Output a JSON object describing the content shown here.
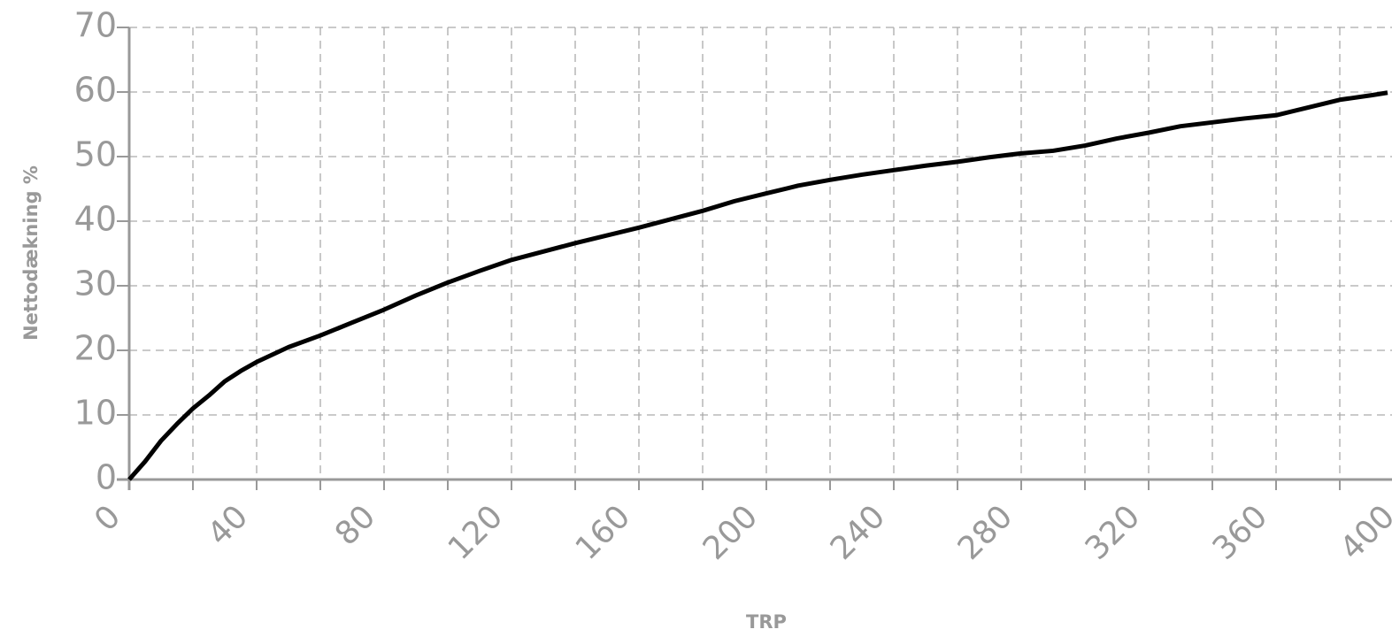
{
  "chart_data": {
    "type": "line",
    "x_label": "TRP",
    "y_label": "Nettodækning %",
    "x": [
      0,
      5,
      10,
      15,
      20,
      25,
      30,
      35,
      40,
      50,
      60,
      70,
      80,
      90,
      100,
      110,
      120,
      130,
      140,
      150,
      160,
      170,
      180,
      190,
      200,
      210,
      220,
      230,
      240,
      250,
      260,
      270,
      280,
      290,
      300,
      310,
      320,
      330,
      340,
      350,
      360,
      370,
      380,
      390,
      395
    ],
    "values": [
      0,
      2.8,
      6,
      8.6,
      11,
      13,
      15.2,
      16.8,
      18.2,
      20.5,
      22.3,
      24.3,
      26.3,
      28.5,
      30.5,
      32.3,
      34,
      35.3,
      36.6,
      37.8,
      39,
      40.3,
      41.6,
      43.1,
      44.3,
      45.5,
      46.4,
      47.2,
      47.9,
      48.6,
      49.2,
      49.9,
      50.5,
      50.9,
      51.7,
      52.8,
      53.7,
      54.7,
      55.3,
      55.9,
      56.4,
      57.6,
      58.8,
      59.5,
      59.9
    ],
    "color": "#000000",
    "xlim": [
      0,
      400
    ],
    "ylim": [
      0,
      70
    ],
    "xticks": [
      0,
      40,
      80,
      120,
      160,
      200,
      240,
      280,
      320,
      360,
      400
    ],
    "xminorticks": [
      20,
      60,
      100,
      140,
      180,
      220,
      260,
      300,
      340,
      380
    ],
    "yticks": [
      0,
      10,
      20,
      30,
      40,
      50,
      60,
      70
    ],
    "grid": true
  }
}
